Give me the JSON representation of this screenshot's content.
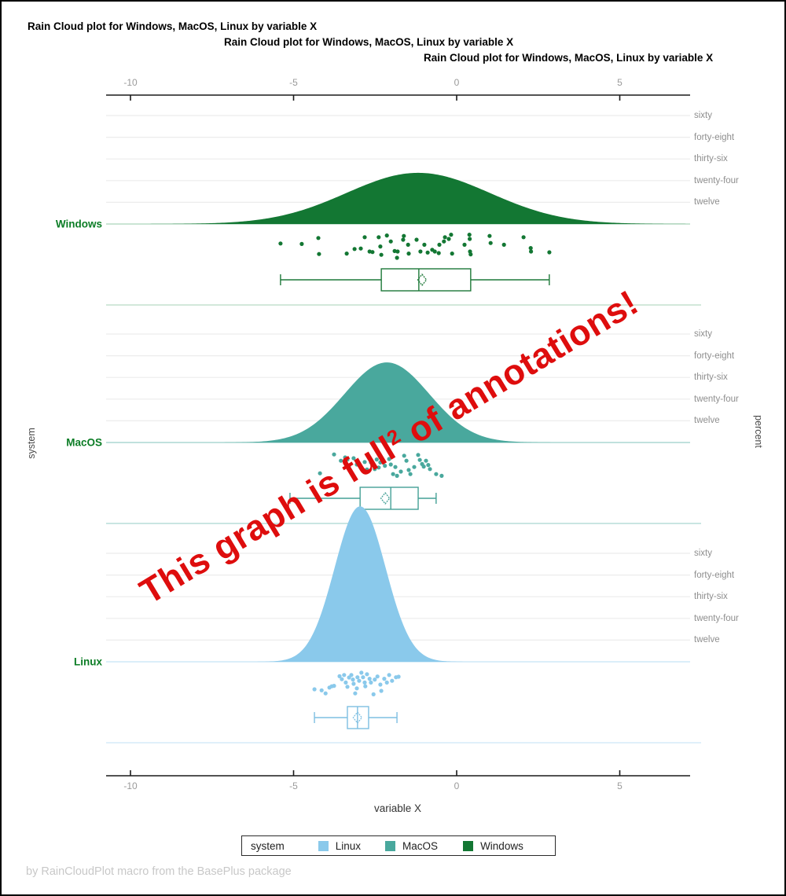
{
  "titles": [
    "Rain Cloud plot for Windows, MacOS, Linux by variable X",
    "Rain Cloud plot for Windows, MacOS, Linux by variable X",
    "Rain Cloud plot for Windows, MacOS, Linux by variable X"
  ],
  "annotation": {
    "pre": "This graph is full",
    "sup": "2",
    "post": " of annotations!",
    "color": "#de0d0d"
  },
  "footnote": {
    "text": "by RainCloudPlot macro from the BasePlus package",
    "color": "#c8c8c8"
  },
  "axes": {
    "x": {
      "label": "variable X",
      "tick_labels": [
        "-10",
        "-5",
        "0",
        "5"
      ],
      "tick_values": [
        -10,
        -5,
        0,
        5
      ]
    },
    "y_left": {
      "label": "system"
    },
    "y_right": {
      "label": "percent",
      "band_tick_labels": [
        "sixty",
        "forty-eight",
        "thirty-six",
        "twenty-four",
        "twelve"
      ]
    }
  },
  "legend": {
    "title": "system",
    "items": [
      "Linux",
      "MacOS",
      "Windows"
    ]
  },
  "chart_data": {
    "type": "raincloud",
    "x_label": "variable X",
    "x_ticks": [
      -10,
      -5,
      0,
      5
    ],
    "x_range": [
      -10.75,
      7.16
    ],
    "percent_ticks": [
      60,
      48,
      36,
      24,
      12
    ],
    "colors": {
      "grid": "#ececec",
      "axis": "#1a1a1a",
      "tick_label": "#9a9a9a",
      "band_label": "#8e8e8e"
    },
    "groups": [
      {
        "name": "Windows",
        "fill": "#137733",
        "stroke": "#1d7838",
        "tint": "#b9dcc6",
        "label_color": "#0c7d26",
        "density": {
          "mean": -1.18,
          "sd": 2.2,
          "peak_percent": 28.3
        },
        "box": {
          "q1": -2.31,
          "q3": 0.43,
          "median": -1.16,
          "mean": -1.06,
          "whisker_low": -5.4,
          "whisker_high": 2.84
        },
        "points": [
          [
            -5.4,
            0.4
          ],
          [
            -4.75,
            0.42
          ],
          [
            -4.24,
            0.18
          ],
          [
            -4.22,
            0.82
          ],
          [
            -3.37,
            0.8
          ],
          [
            -3.13,
            0.62
          ],
          [
            -2.94,
            0.6
          ],
          [
            -2.82,
            0.15
          ],
          [
            -2.67,
            0.72
          ],
          [
            -2.58,
            0.74
          ],
          [
            -2.39,
            0.15
          ],
          [
            -2.34,
            0.52
          ],
          [
            -2.31,
            0.85
          ],
          [
            -2.14,
            0.08
          ],
          [
            -2.02,
            0.32
          ],
          [
            -1.9,
            0.7
          ],
          [
            -1.83,
            0.97
          ],
          [
            -1.81,
            0.72
          ],
          [
            -1.64,
            0.25
          ],
          [
            -1.62,
            0.1
          ],
          [
            -1.49,
            0.45
          ],
          [
            -1.47,
            0.8
          ],
          [
            -1.23,
            0.25
          ],
          [
            -1.11,
            0.72
          ],
          [
            -0.99,
            0.45
          ],
          [
            -0.89,
            0.76
          ],
          [
            -0.75,
            0.65
          ],
          [
            -0.67,
            0.72
          ],
          [
            -0.55,
            0.78
          ],
          [
            -0.53,
            0.45
          ],
          [
            -0.39,
            0.32
          ],
          [
            -0.36,
            0.15
          ],
          [
            -0.24,
            0.22
          ],
          [
            -0.17,
            0.05
          ],
          [
            -0.14,
            0.8
          ],
          [
            0.24,
            0.45
          ],
          [
            0.39,
            0.05
          ],
          [
            0.4,
            0.22
          ],
          [
            0.41,
            0.72
          ],
          [
            0.43,
            0.83
          ],
          [
            1.01,
            0.1
          ],
          [
            1.04,
            0.38
          ],
          [
            1.45,
            0.45
          ],
          [
            2.05,
            0.15
          ],
          [
            2.27,
            0.58
          ],
          [
            2.28,
            0.72
          ],
          [
            2.84,
            0.75
          ]
        ]
      },
      {
        "name": "MacOS",
        "fill": "#49A89D",
        "stroke": "#44a096",
        "tint": "#abd7d2",
        "label_color": "#0c7d26",
        "density": {
          "mean": -2.14,
          "sd": 1.3,
          "peak_percent": 44.3
        },
        "box": {
          "q1": -2.96,
          "q3": -1.18,
          "median": -2.02,
          "mean": -2.19,
          "whisker_low": -5.11,
          "whisker_high": -0.63
        },
        "points": [
          [
            -4.19,
            0.85
          ],
          [
            -3.76,
            0.1
          ],
          [
            -3.55,
            0.35
          ],
          [
            -3.42,
            0.22
          ],
          [
            -3.35,
            0.3
          ],
          [
            -3.3,
            0.55
          ],
          [
            -3.16,
            0.25
          ],
          [
            -3.06,
            0.5
          ],
          [
            -2.92,
            0.62
          ],
          [
            -2.82,
            0.4
          ],
          [
            -2.75,
            0.7
          ],
          [
            -2.63,
            0.42
          ],
          [
            -2.51,
            0.68
          ],
          [
            -2.45,
            0.3
          ],
          [
            -2.39,
            0.62
          ],
          [
            -2.34,
            0.42
          ],
          [
            -2.2,
            0.55
          ],
          [
            -2.07,
            0.28
          ],
          [
            -2.02,
            0.5
          ],
          [
            -1.95,
            0.88
          ],
          [
            -1.88,
            0.6
          ],
          [
            -1.83,
            0.95
          ],
          [
            -1.71,
            0.78
          ],
          [
            -1.61,
            0.15
          ],
          [
            -1.54,
            0.35
          ],
          [
            -1.47,
            0.72
          ],
          [
            -1.42,
            0.88
          ],
          [
            -1.3,
            0.6
          ],
          [
            -1.18,
            0.12
          ],
          [
            -1.13,
            0.32
          ],
          [
            -1.06,
            0.48
          ],
          [
            -1.01,
            0.58
          ],
          [
            -0.94,
            0.35
          ],
          [
            -0.87,
            0.52
          ],
          [
            -0.82,
            0.68
          ],
          [
            -0.63,
            0.88
          ],
          [
            -0.46,
            0.95
          ]
        ]
      },
      {
        "name": "Linux",
        "fill": "#8AC9EB",
        "stroke": "#7ebfe2",
        "tint": "#cfe8f7",
        "label_color": "#0c7d26",
        "density": {
          "mean": -2.96,
          "sd": 0.78,
          "peak_percent": 86.0
        },
        "box": {
          "q1": -3.35,
          "q3": -2.7,
          "median": -3.04,
          "mean": -3.04,
          "whisker_low": -4.36,
          "whisker_high": -1.83
        },
        "points": [
          [
            -4.36,
            0.72
          ],
          [
            -4.14,
            0.76
          ],
          [
            -4.02,
            0.88
          ],
          [
            -3.9,
            0.65
          ],
          [
            -3.83,
            0.6
          ],
          [
            -3.76,
            0.58
          ],
          [
            -3.59,
            0.2
          ],
          [
            -3.52,
            0.32
          ],
          [
            -3.45,
            0.15
          ],
          [
            -3.4,
            0.45
          ],
          [
            -3.35,
            0.62
          ],
          [
            -3.3,
            0.25
          ],
          [
            -3.23,
            0.15
          ],
          [
            -3.18,
            0.33
          ],
          [
            -3.16,
            0.5
          ],
          [
            -3.11,
            0.88
          ],
          [
            -3.06,
            0.68
          ],
          [
            -3.04,
            0.24
          ],
          [
            -2.99,
            0.38
          ],
          [
            -2.92,
            0.06
          ],
          [
            -2.87,
            0.24
          ],
          [
            -2.82,
            0.45
          ],
          [
            -2.8,
            0.6
          ],
          [
            -2.75,
            0.12
          ],
          [
            -2.67,
            0.3
          ],
          [
            -2.63,
            0.45
          ],
          [
            -2.55,
            0.92
          ],
          [
            -2.51,
            0.33
          ],
          [
            -2.43,
            0.21
          ],
          [
            -2.34,
            0.53
          ],
          [
            -2.31,
            0.78
          ],
          [
            -2.22,
            0.3
          ],
          [
            -2.14,
            0.45
          ],
          [
            -2.07,
            0.15
          ],
          [
            -1.98,
            0.38
          ],
          [
            -1.86,
            0.24
          ],
          [
            -1.78,
            0.22
          ]
        ]
      }
    ]
  }
}
